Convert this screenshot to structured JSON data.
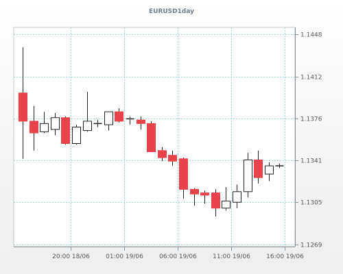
{
  "chart_data": {
    "type": "candlestick",
    "title": "EURUSD1day",
    "ylim": [
      1.1269,
      1.1448
    ],
    "y_ticks": [
      "1.1448",
      "1.1412",
      "1.1376",
      "1.1341",
      "1.1305",
      "1.1269"
    ],
    "y_tick_values": [
      1.1448,
      1.1412,
      1.1376,
      1.1341,
      1.1305,
      1.1269
    ],
    "x_ticks": [
      "20:00 18/06",
      "01:00 19/06",
      "06:00 19/06",
      "11:00 19/06",
      "16:00 19/06"
    ],
    "x_tick_indices": [
      4.5,
      9.5,
      14.5,
      19.5,
      24.5
    ],
    "grid": true,
    "up_color": "#ffffff",
    "down_color": "#e8434b",
    "candles": [
      {
        "o": 1.1398,
        "h": 1.1437,
        "l": 1.1342,
        "c": 1.1374
      },
      {
        "o": 1.1374,
        "h": 1.1387,
        "l": 1.1349,
        "c": 1.1364
      },
      {
        "o": 1.1365,
        "h": 1.1382,
        "l": 1.1364,
        "c": 1.1372
      },
      {
        "o": 1.1367,
        "h": 1.1381,
        "l": 1.1362,
        "c": 1.1377
      },
      {
        "o": 1.1377,
        "h": 1.1378,
        "l": 1.1354,
        "c": 1.1355
      },
      {
        "o": 1.1355,
        "h": 1.1371,
        "l": 1.1354,
        "c": 1.1369
      },
      {
        "o": 1.1366,
        "h": 1.1399,
        "l": 1.1365,
        "c": 1.1374
      },
      {
        "o": 1.1372,
        "h": 1.1375,
        "l": 1.1369,
        "c": 1.1372
      },
      {
        "o": 1.1371,
        "h": 1.1382,
        "l": 1.1366,
        "c": 1.1382
      },
      {
        "o": 1.1382,
        "h": 1.1385,
        "l": 1.1373,
        "c": 1.1374
      },
      {
        "o": 1.1376,
        "h": 1.1378,
        "l": 1.1371,
        "c": 1.1376
      },
      {
        "o": 1.1375,
        "h": 1.1378,
        "l": 1.1367,
        "c": 1.1372
      },
      {
        "o": 1.1372,
        "h": 1.1374,
        "l": 1.1348,
        "c": 1.1348
      },
      {
        "o": 1.1349,
        "h": 1.1352,
        "l": 1.134,
        "c": 1.1343
      },
      {
        "o": 1.1345,
        "h": 1.1349,
        "l": 1.1336,
        "c": 1.134
      },
      {
        "o": 1.1342,
        "h": 1.1343,
        "l": 1.1308,
        "c": 1.1316
      },
      {
        "o": 1.1316,
        "h": 1.1317,
        "l": 1.1302,
        "c": 1.1312
      },
      {
        "o": 1.1313,
        "h": 1.1315,
        "l": 1.1304,
        "c": 1.1311
      },
      {
        "o": 1.1313,
        "h": 1.1316,
        "l": 1.1293,
        "c": 1.13
      },
      {
        "o": 1.13,
        "h": 1.1318,
        "l": 1.1298,
        "c": 1.1306
      },
      {
        "o": 1.1305,
        "h": 1.132,
        "l": 1.13,
        "c": 1.1314
      },
      {
        "o": 1.1314,
        "h": 1.1347,
        "l": 1.1309,
        "c": 1.1341
      },
      {
        "o": 1.1341,
        "h": 1.1349,
        "l": 1.1321,
        "c": 1.1326
      },
      {
        "o": 1.1329,
        "h": 1.1339,
        "l": 1.1323,
        "c": 1.1336
      },
      {
        "o": 1.1336,
        "h": 1.1338,
        "l": 1.1334,
        "c": 1.1336
      }
    ]
  }
}
